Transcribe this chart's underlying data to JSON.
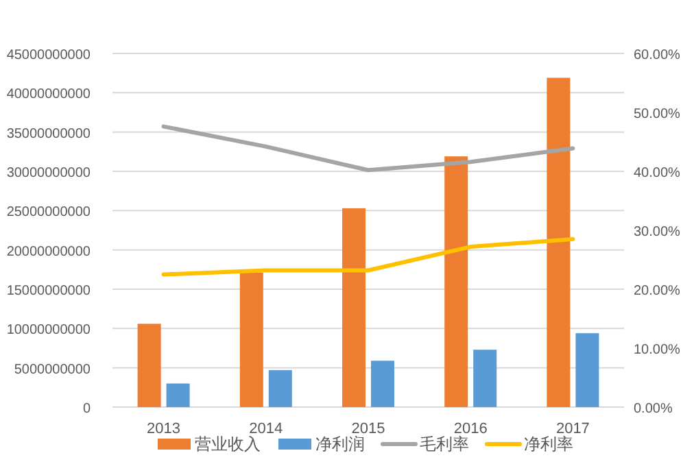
{
  "chart_data": {
    "type": "bar",
    "categories": [
      "2013",
      "2014",
      "2015",
      "2016",
      "2017"
    ],
    "series": [
      {
        "name": "营业收入",
        "color": "#ed7d31",
        "values": [
          10600000000,
          17100000000,
          25300000000,
          31900000000,
          41900000000
        ]
      },
      {
        "name": "净利润",
        "color": "#5b9bd5",
        "values": [
          3000000000,
          4700000000,
          5900000000,
          7300000000,
          9400000000
        ]
      },
      {
        "name": "毛利率",
        "type": "line",
        "axis": "y2",
        "color": "#a5a5a5",
        "values": [
          47.6,
          44.2,
          40.2,
          41.6,
          43.9
        ]
      },
      {
        "name": "净利率",
        "type": "line",
        "axis": "y2",
        "color": "#ffc000",
        "values": [
          22.5,
          23.2,
          23.2,
          27.2,
          28.5
        ]
      }
    ],
    "ylim": [
      0,
      45000000000
    ],
    "yticks": [
      0,
      5000000000,
      10000000000,
      15000000000,
      20000000000,
      25000000000,
      30000000000,
      35000000000,
      40000000000,
      45000000000
    ],
    "y2lim": [
      0,
      60
    ],
    "y2ticks": [
      {
        "value": 0,
        "label": "0.00%"
      },
      {
        "value": 10,
        "label": "10.00%"
      },
      {
        "value": 20,
        "label": "20.00%"
      },
      {
        "value": 30,
        "label": "30.00%"
      },
      {
        "value": 40,
        "label": "40.00%"
      },
      {
        "value": 50,
        "label": "50.00%"
      },
      {
        "value": 60,
        "label": "60.00%"
      }
    ],
    "grid": "y",
    "legend": "bottom",
    "marker": "none"
  }
}
